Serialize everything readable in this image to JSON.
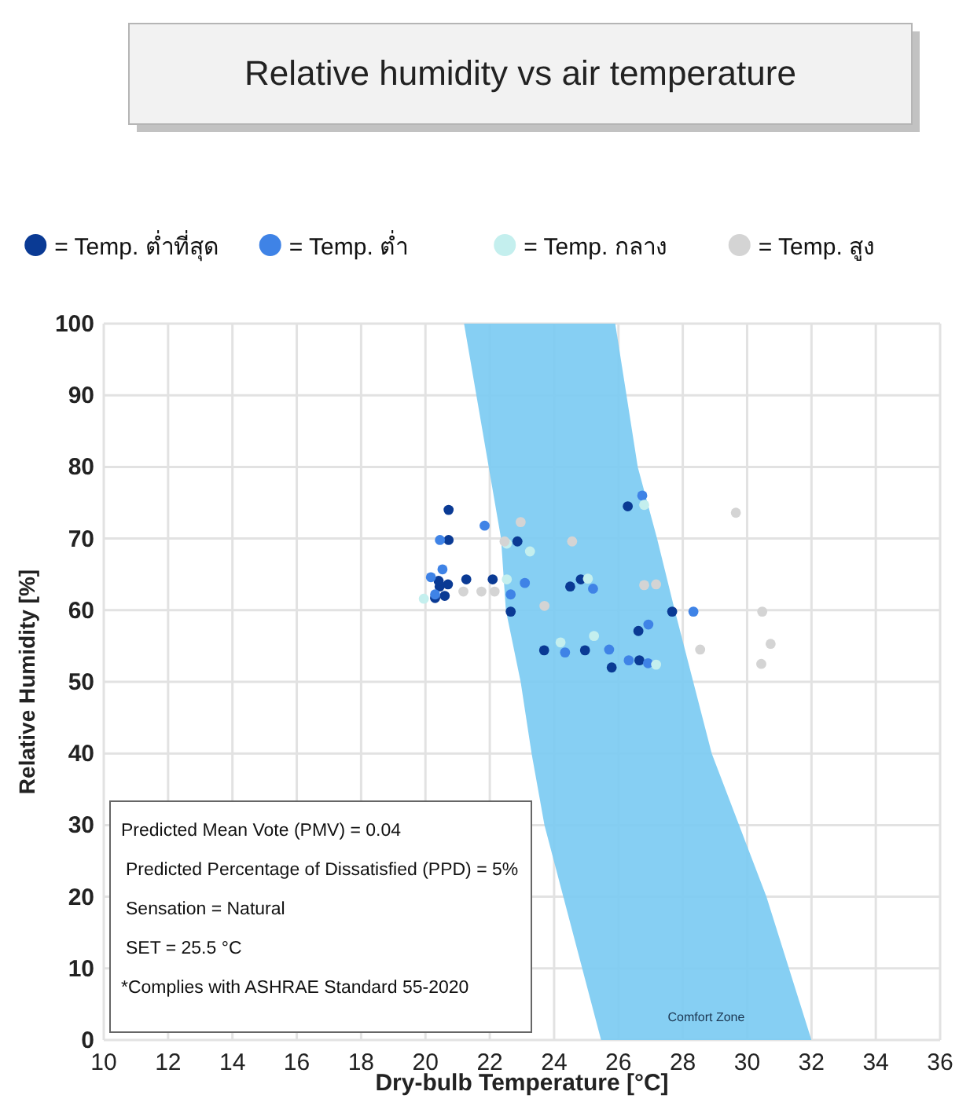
{
  "chart_data": {
    "type": "scatter",
    "title": "Relative humidity vs air temperature",
    "xlabel": "Dry-bulb Temperature [°C]",
    "ylabel": "Relative Humidity [%]",
    "xlim": [
      10,
      36
    ],
    "ylim": [
      0,
      100
    ],
    "xticks": [
      10,
      12,
      14,
      16,
      18,
      20,
      22,
      24,
      26,
      28,
      30,
      32,
      34,
      36
    ],
    "yticks": [
      0,
      10,
      20,
      30,
      40,
      50,
      60,
      70,
      80,
      90,
      100
    ],
    "grid": true,
    "legend": "top",
    "marker": "circle",
    "series": [
      {
        "type": "area",
        "name": "Comfort Zone",
        "marker": "none",
        "color": "#7ccbf2",
        "x": [
          21.2,
          22.35,
          22.5,
          22.96,
          23.3,
          23.7,
          25.46,
          32.0,
          30.6,
          28.9,
          27.75,
          27.2,
          26.6,
          25.9
        ],
        "values": [
          100,
          70,
          60,
          50,
          40,
          30,
          0,
          0,
          20,
          40,
          60,
          70,
          80,
          100
        ]
      },
      {
        "name": "= Temp. ต่ำที่สุด",
        "color": "#0a3a94",
        "x": [
          20.72,
          20.72,
          20.3,
          20.6,
          20.44,
          20.7,
          21.27,
          22.09,
          22.86,
          22.65,
          23.69,
          24.5,
          24.83,
          24.96,
          25.79,
          26.29,
          26.62,
          26.65,
          27.67,
          20.41
        ],
        "values": [
          74.0,
          69.8,
          61.7,
          62.0,
          63.3,
          63.6,
          64.3,
          64.3,
          69.6,
          59.8,
          54.4,
          63.3,
          64.3,
          54.4,
          52.0,
          74.5,
          57.1,
          53.0,
          59.8,
          64.1
        ]
      },
      {
        "name": "= Temp. ต่ำ",
        "color": "#3f83e6",
        "x": [
          21.84,
          20.45,
          20.53,
          20.17,
          20.3,
          22.65,
          23.09,
          25.21,
          24.34,
          25.71,
          26.32,
          26.92,
          26.93,
          26.74,
          28.33
        ],
        "values": [
          71.8,
          69.8,
          65.7,
          64.6,
          62.2,
          62.2,
          63.8,
          63.0,
          54.1,
          54.5,
          53.0,
          52.6,
          58.0,
          76.0,
          59.8
        ]
      },
      {
        "name": "= Temp. กลาง",
        "color": "#c4efee",
        "x": [
          22.53,
          23.25,
          22.53,
          26.8,
          25.24,
          24.2,
          27.17,
          25.05,
          19.95
        ],
        "values": [
          69.3,
          68.2,
          64.3,
          74.7,
          56.4,
          55.5,
          52.4,
          64.4,
          61.6
        ]
      },
      {
        "name": "= Temp. สูง",
        "color": "#d4d4d4",
        "x": [
          22.96,
          24.56,
          22.46,
          21.18,
          21.74,
          22.15,
          23.7,
          26.8,
          27.17,
          28.54,
          29.65,
          30.47,
          30.73,
          30.44
        ],
        "values": [
          72.3,
          69.6,
          69.6,
          62.6,
          62.6,
          62.6,
          60.6,
          63.5,
          63.6,
          54.5,
          73.6,
          59.8,
          55.3,
          52.5
        ]
      }
    ],
    "annotations": [
      "Predicted Mean Vote (PMV) = 0.04",
      "Predicted Percentage of Dissatisfied (PPD) = 5%",
      "Sensation = Natural",
      "SET = 25.5 °C",
      "*Complies with ASHRAE Standard 55-2020"
    ]
  }
}
